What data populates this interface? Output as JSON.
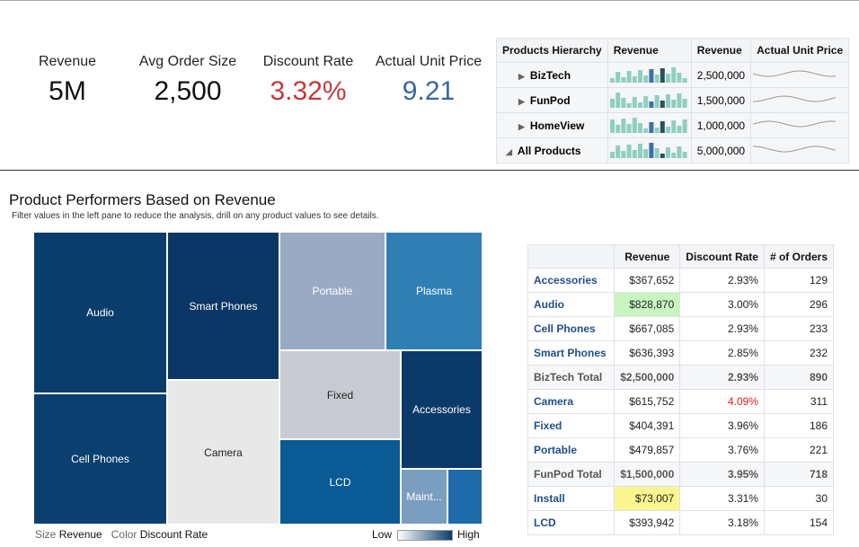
{
  "kpis": [
    {
      "label": "Revenue",
      "value": "5M"
    },
    {
      "label": "Avg Order Size",
      "value": "2,500"
    },
    {
      "label": "Discount Rate",
      "value": "3.32%"
    },
    {
      "label": "Actual Unit Price",
      "value": "9.21"
    }
  ],
  "hierarchy_table": {
    "headers": [
      "Products Hierarchy",
      "Revenue",
      "Revenue",
      "Actual Unit Price"
    ],
    "rows": [
      [
        "BizTech",
        "2,500,000"
      ],
      [
        "FunPod",
        "1,500,000"
      ],
      [
        "HomeView",
        "1,000,000"
      ],
      [
        "All Products",
        "5,000,000"
      ]
    ]
  },
  "section": {
    "title": "Product Performers Based on Revenue",
    "subtitle": "Filter values in the left pane to reduce the analysis, drill on any product values to see details."
  },
  "treemap": {
    "tiles": [
      "Audio",
      "Cell Phones",
      "Smart Phones",
      "Camera",
      "Portable",
      "Plasma",
      "Fixed",
      "Accessories",
      "LCD",
      "Maint..."
    ],
    "legend": {
      "size_label": "Size",
      "size_value": "Revenue",
      "color_label": "Color",
      "color_value": "Discount Rate",
      "low": "Low",
      "high": "High"
    }
  },
  "detail_table": {
    "headers": [
      "Revenue",
      "Discount Rate",
      "# of Orders"
    ],
    "rows": [
      [
        "Accessories",
        "$367,652",
        "2.93%",
        "129"
      ],
      [
        "Audio",
        "$828,870",
        "3.00%",
        "296"
      ],
      [
        "Cell Phones",
        "$667,085",
        "2.93%",
        "233"
      ],
      [
        "Smart Phones",
        "$636,393",
        "2.85%",
        "232"
      ],
      [
        "BizTech Total",
        "$2,500,000",
        "2.93%",
        "890"
      ],
      [
        "Camera",
        "$615,752",
        "4.09%",
        "311"
      ],
      [
        "Fixed",
        "$404,391",
        "3.96%",
        "186"
      ],
      [
        "Portable",
        "$479,857",
        "3.76%",
        "221"
      ],
      [
        "FunPod Total",
        "$1,500,000",
        "3.95%",
        "718"
      ],
      [
        "Install",
        "$73,007",
        "3.31%",
        "30"
      ],
      [
        "LCD",
        "$393,942",
        "3.18%",
        "154"
      ]
    ]
  }
}
